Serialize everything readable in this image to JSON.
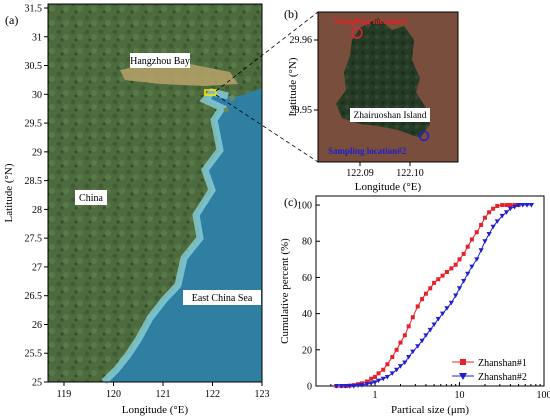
{
  "panel_a": {
    "letter": "(a)",
    "xlabel": "Longitude (°E)",
    "ylabel": "Latitude (°N)",
    "xticks": [
      "119",
      "120",
      "121",
      "122",
      "123"
    ],
    "yticks": [
      "31.5",
      "31",
      "30.5",
      "30",
      "29.5",
      "29",
      "28.5",
      "28",
      "27.5",
      "27",
      "26.5",
      "26",
      "25.5",
      "25"
    ],
    "labels": {
      "bay": "Hangzhou Bay",
      "country": "China",
      "sea": "East China Sea"
    },
    "colors": {
      "land": "#4a6a3c",
      "sea": "#3a8fb0",
      "coast": "#8fd0d8",
      "marker": "#ffe000"
    }
  },
  "panel_b": {
    "letter": "(b)",
    "xlabel": "Longitude (°E)",
    "ylabel": "Latitude (°N)",
    "xticks": [
      "122.09",
      "122.10"
    ],
    "yticks": [
      "29.96",
      "29.95"
    ],
    "island_label": "Zhairuoshan Island",
    "site1": "Sampling location1",
    "site2": "Sampling location#2",
    "colors": {
      "water": "#7a4e3c",
      "island": "#253b25",
      "site1": "#e8202a",
      "site2": "#2020d0"
    }
  },
  "panel_c": {
    "letter": "(c)",
    "chart_data": {
      "type": "line",
      "xlabel": "Partical size (μm)",
      "ylabel": "Cumulative percent (%)",
      "xscale": "log",
      "xlim": [
        0.2,
        100
      ],
      "ylim": [
        0,
        105
      ],
      "xtick_values": [
        1,
        10,
        100
      ],
      "xtick_labels": [
        "1",
        "10",
        "100"
      ],
      "ytick_values": [
        0,
        20,
        40,
        60,
        80,
        100
      ],
      "ytick_labels": [
        "0",
        "20",
        "40",
        "60",
        "80",
        "100"
      ],
      "legend": "bottom-right",
      "series": [
        {
          "name": "Zhanshan#1",
          "color": "#e8202a",
          "marker": "square",
          "x": [
            0.35,
            0.4,
            0.45,
            0.5,
            0.56,
            0.63,
            0.7,
            0.8,
            0.9,
            1.0,
            1.1,
            1.25,
            1.4,
            1.6,
            1.8,
            2.0,
            2.25,
            2.5,
            2.8,
            3.2,
            3.6,
            4.0,
            4.5,
            5.0,
            5.6,
            6.3,
            7.1,
            8.0,
            9.0,
            10,
            11.2,
            12.5,
            14,
            16,
            18,
            20,
            22.4,
            25,
            28,
            32,
            36,
            40,
            45,
            50
          ],
          "y": [
            0,
            0,
            0,
            0.2,
            0.5,
            1,
            1.5,
            2.5,
            4,
            5,
            7,
            9,
            12,
            16,
            20,
            24,
            28,
            33,
            38,
            44,
            48,
            51,
            54,
            57,
            59,
            61,
            63,
            65,
            67,
            70,
            73,
            77,
            81,
            85,
            89,
            93,
            96,
            98,
            99.5,
            100,
            100,
            100,
            100,
            100
          ]
        },
        {
          "name": "Zhanshan#2",
          "color": "#2020d0",
          "marker": "triangle-down",
          "x": [
            0.35,
            0.4,
            0.45,
            0.5,
            0.56,
            0.63,
            0.7,
            0.8,
            0.9,
            1.0,
            1.1,
            1.25,
            1.4,
            1.6,
            1.8,
            2.0,
            2.25,
            2.5,
            2.8,
            3.2,
            3.6,
            4.0,
            4.5,
            5.0,
            5.6,
            6.3,
            7.1,
            8.0,
            9.0,
            10,
            11.2,
            12.5,
            14,
            16,
            18,
            20,
            22.4,
            25,
            28,
            32,
            36,
            40,
            45,
            50,
            56,
            63,
            71
          ],
          "y": [
            0,
            0,
            0,
            0,
            0,
            0.3,
            0.5,
            1,
            1.5,
            2,
            3,
            4,
            5,
            7,
            9,
            11,
            13,
            16,
            19,
            22,
            25,
            28,
            31,
            34,
            37,
            40,
            43,
            46,
            50,
            54,
            58,
            62,
            66,
            70,
            75,
            80,
            84,
            88,
            91,
            94,
            96,
            98,
            99,
            100,
            100,
            100,
            100
          ]
        }
      ]
    }
  }
}
